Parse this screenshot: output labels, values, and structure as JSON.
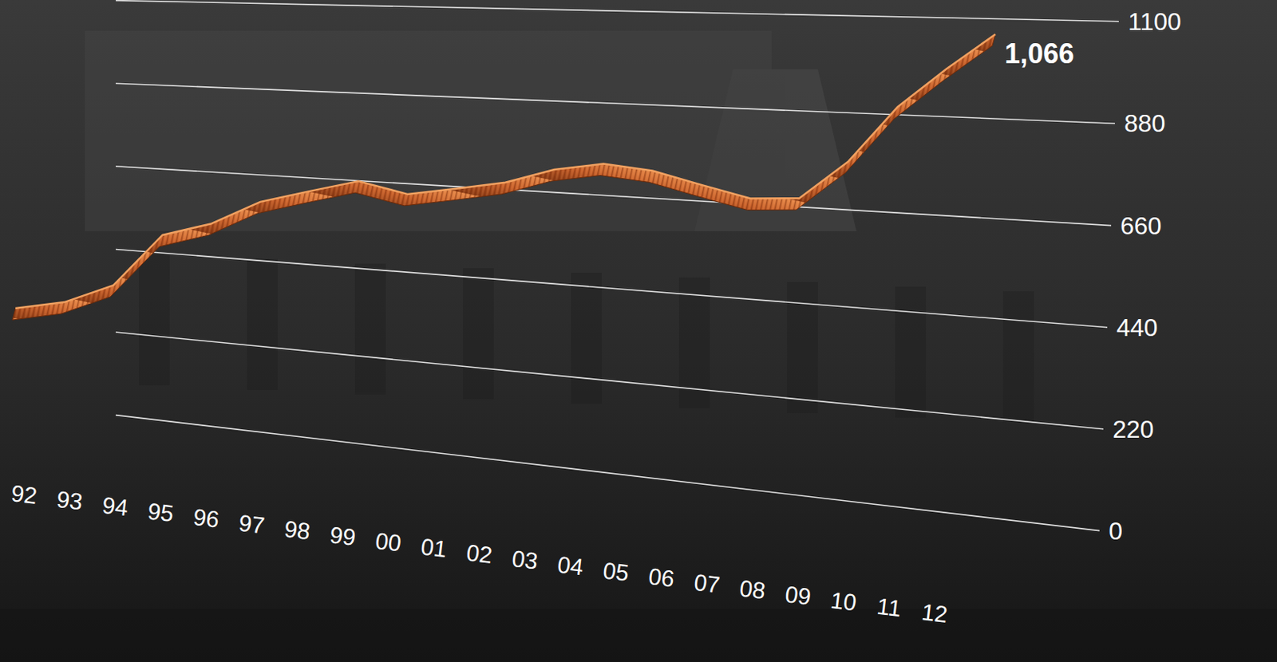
{
  "chart_data": {
    "type": "line",
    "categories": [
      "92",
      "93",
      "94",
      "95",
      "96",
      "97",
      "98",
      "99",
      "00",
      "01",
      "02",
      "03",
      "04",
      "05",
      "06",
      "07",
      "08",
      "09",
      "10",
      "11",
      "12"
    ],
    "values": [
      258,
      287,
      344,
      487,
      526,
      591,
      626,
      659,
      634,
      655,
      677,
      715,
      735,
      725,
      698,
      673,
      680,
      770,
      897,
      986,
      1066
    ],
    "value_labels": [
      null,
      null,
      null,
      null,
      null,
      null,
      null,
      null,
      null,
      null,
      null,
      null,
      null,
      null,
      null,
      null,
      null,
      null,
      null,
      null,
      "1,066"
    ],
    "data_labels": true,
    "color": "#c8602a",
    "ylim": [
      0,
      1100
    ],
    "yticks": [
      0,
      220,
      440,
      660,
      880,
      1100
    ],
    "grid": true
  }
}
